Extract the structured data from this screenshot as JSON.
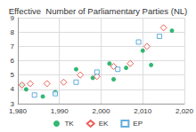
{
  "chart_data": {
    "type": "scatter",
    "title": "Effective  Number of Parliamentary Parties (NL)",
    "xlim": [
      1980,
      2020
    ],
    "xticks": [
      1980,
      1990,
      2000,
      2010,
      2020
    ],
    "ylim": [
      3,
      9
    ],
    "yticks": [
      3,
      4,
      5,
      6,
      7,
      8,
      9
    ],
    "grid": true,
    "legend": "bottom",
    "series": [
      {
        "name": "TK",
        "color": "#00a651",
        "marker": "circle",
        "x": [
          1981,
          1982,
          1986,
          1989,
          1994,
          1998,
          2002,
          2003,
          2006,
          2010,
          2012,
          2017
        ],
        "values": [
          4.3,
          4.0,
          3.5,
          3.8,
          5.4,
          4.8,
          5.8,
          4.7,
          5.5,
          6.7,
          5.7,
          8.1
        ]
      },
      {
        "name": "EK",
        "color": "#e8382f",
        "marker": "diamond-open",
        "x": [
          1981,
          1983,
          1987,
          1991,
          1995,
          1999,
          2003,
          2007,
          2011,
          2015
        ],
        "values": [
          4.3,
          4.4,
          4.4,
          4.5,
          5.0,
          4.9,
          5.6,
          5.8,
          7.0,
          8.3
        ]
      },
      {
        "name": "EP",
        "color": "#3d9ad6",
        "marker": "square-open",
        "x": [
          1984,
          1989,
          1994,
          1999,
          2004,
          2009,
          2014
        ],
        "values": [
          3.6,
          3.7,
          4.5,
          5.2,
          5.4,
          7.3,
          7.7
        ]
      }
    ]
  }
}
